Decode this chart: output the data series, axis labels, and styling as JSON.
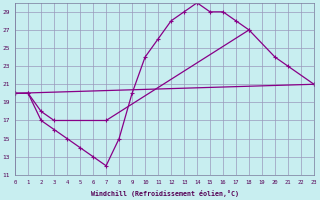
{
  "background_color": "#c8eef0",
  "grid_color": "#9999bb",
  "line_color": "#880088",
  "xlim": [
    0,
    23
  ],
  "ylim": [
    11,
    30
  ],
  "yticks": [
    11,
    13,
    15,
    17,
    19,
    21,
    23,
    25,
    27,
    29
  ],
  "xticks": [
    0,
    1,
    2,
    3,
    4,
    5,
    6,
    7,
    8,
    9,
    10,
    11,
    12,
    13,
    14,
    15,
    16,
    17,
    18,
    19,
    20,
    21,
    22,
    23
  ],
  "xlabel": "Windchill (Refroidissement éolien,°C)",
  "series": [
    {
      "x": [
        0,
        1,
        2,
        3,
        4,
        5,
        6,
        7,
        8,
        9,
        10,
        11,
        12,
        13,
        14,
        15,
        16,
        17,
        18
      ],
      "y": [
        20,
        20,
        17,
        16,
        15,
        14,
        13,
        12,
        15,
        20,
        24,
        26,
        28,
        29,
        30,
        29,
        29,
        28,
        27
      ]
    },
    {
      "x": [
        0,
        1,
        2,
        3,
        7,
        18,
        20,
        21,
        23
      ],
      "y": [
        20,
        20,
        18,
        17,
        17,
        27,
        24,
        23,
        21
      ]
    },
    {
      "x": [
        0,
        23
      ],
      "y": [
        20,
        21
      ]
    }
  ]
}
